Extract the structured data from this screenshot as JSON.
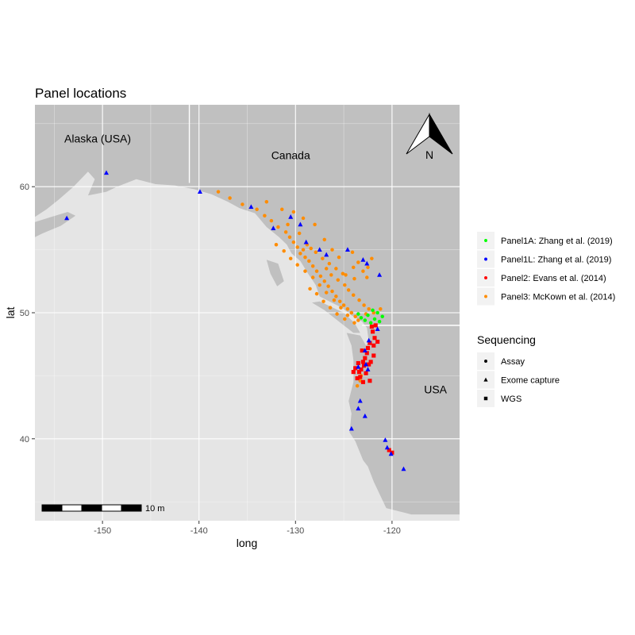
{
  "chart_data": {
    "type": "scatter",
    "title": "Panel locations",
    "xlabel": "long",
    "ylabel": "lat",
    "xlim": [
      -157,
      -113
    ],
    "ylim": [
      33.5,
      66.5
    ],
    "xticks": [
      -150,
      -140,
      -130,
      -120
    ],
    "yticks": [
      40,
      50,
      60
    ],
    "grid": true,
    "background_colors": {
      "land": "#c0c0c0",
      "ocean": "#e5e5e5",
      "gridline": "#ffffff"
    },
    "region_labels": [
      {
        "text": "Alaska (USA)",
        "lon": -150.5,
        "lat": 63.5
      },
      {
        "text": "Canada",
        "lon": -130.5,
        "lat": 62.2
      },
      {
        "text": "USA",
        "lon": -115.5,
        "lat": 43.6
      }
    ],
    "north_arrow": {
      "label": "N"
    },
    "scale_bar": {
      "label": "10 m"
    },
    "legend": {
      "placement": "right",
      "color_entries": [
        {
          "name": "Panel1A: Zhang et al. (2019)",
          "color": "#00ff00"
        },
        {
          "name": "Panel1L: Zhang et al. (2019)",
          "color": "#0000ff"
        },
        {
          "name": "Panel2: Evans et al. (2014)",
          "color": "#ff0000"
        },
        {
          "name": "Panel3: McKown et al. (2014)",
          "color": "#ff8c00"
        }
      ],
      "shape_title": "Sequencing",
      "shape_entries": [
        {
          "name": "Assay",
          "shape": "circle"
        },
        {
          "name": "Exome capture",
          "shape": "triangle"
        },
        {
          "name": "WGS",
          "shape": "square"
        }
      ]
    },
    "series": [
      {
        "name": "Panel1A: Zhang et al. (2019)",
        "color": "#00ff00",
        "shape": "circle",
        "points": [
          [
            -123.2,
            49.6
          ],
          [
            -122.5,
            49.8
          ],
          [
            -121.8,
            49.5
          ],
          [
            -122.0,
            50.2
          ],
          [
            -122.8,
            49.4
          ],
          [
            -121.5,
            50.0
          ],
          [
            -121.0,
            49.7
          ],
          [
            -122.2,
            49.2
          ],
          [
            -123.5,
            49.9
          ],
          [
            -121.3,
            49.3
          ]
        ]
      },
      {
        "name": "Panel1L: Zhang et al. (2019)",
        "color": "#0000ff",
        "shape": "triangle",
        "points": [
          [
            -153.7,
            57.5
          ],
          [
            -149.6,
            61.1
          ],
          [
            -139.9,
            59.6
          ],
          [
            -134.6,
            58.4
          ],
          [
            -132.3,
            56.7
          ],
          [
            -130.5,
            57.6
          ],
          [
            -129.5,
            57.0
          ],
          [
            -128.9,
            55.6
          ],
          [
            -127.5,
            55.0
          ],
          [
            -126.8,
            54.6
          ],
          [
            -124.6,
            55.0
          ],
          [
            -123.0,
            54.2
          ],
          [
            -122.6,
            53.9
          ],
          [
            -121.3,
            53.0
          ],
          [
            -121.5,
            48.7
          ],
          [
            -122.4,
            47.8
          ],
          [
            -122.8,
            47.0
          ],
          [
            -123.5,
            45.7
          ],
          [
            -122.5,
            45.5
          ],
          [
            -123.3,
            43.0
          ],
          [
            -123.5,
            42.4
          ],
          [
            -122.8,
            41.8
          ],
          [
            -124.2,
            40.8
          ],
          [
            -120.7,
            39.9
          ],
          [
            -120.5,
            39.3
          ],
          [
            -120.1,
            38.8
          ],
          [
            -118.8,
            37.6
          ],
          [
            -122.7,
            45.9
          ]
        ]
      },
      {
        "name": "Panel2: Evans et al. (2014)",
        "color": "#ff0000",
        "shape": "square",
        "points": [
          [
            -122.0,
            48.5
          ],
          [
            -121.8,
            48.0
          ],
          [
            -122.3,
            47.6
          ],
          [
            -122.5,
            47.2
          ],
          [
            -122.6,
            46.8
          ],
          [
            -122.8,
            46.4
          ],
          [
            -123.0,
            46.1
          ],
          [
            -122.9,
            45.8
          ],
          [
            -123.2,
            45.5
          ],
          [
            -122.7,
            45.2
          ],
          [
            -123.5,
            46.0
          ],
          [
            -123.8,
            45.6
          ],
          [
            -123.3,
            44.9
          ],
          [
            -123.0,
            44.5
          ],
          [
            -122.2,
            46.1
          ],
          [
            -121.9,
            47.4
          ],
          [
            -122.1,
            48.9
          ],
          [
            -121.7,
            49.0
          ],
          [
            -121.5,
            47.7
          ],
          [
            -121.9,
            46.6
          ],
          [
            -122.4,
            45.9
          ],
          [
            -123.6,
            44.8
          ],
          [
            -124.0,
            45.3
          ],
          [
            -123.1,
            47.0
          ],
          [
            -120.3,
            39.1
          ],
          [
            -120.0,
            38.9
          ],
          [
            -123.4,
            45.3
          ],
          [
            -122.3,
            44.6
          ]
        ]
      },
      {
        "name": "Panel3: McKown et al. (2014)",
        "color": "#ff8c00",
        "shape": "circle",
        "points": [
          [
            -138.0,
            59.6
          ],
          [
            -136.8,
            59.1
          ],
          [
            -135.5,
            58.6
          ],
          [
            -134.0,
            58.2
          ],
          [
            -133.2,
            57.7
          ],
          [
            -132.5,
            57.3
          ],
          [
            -131.8,
            56.8
          ],
          [
            -131.0,
            56.4
          ],
          [
            -130.6,
            56.0
          ],
          [
            -130.2,
            55.6
          ],
          [
            -129.8,
            55.2
          ],
          [
            -129.5,
            54.7
          ],
          [
            -129.0,
            54.4
          ],
          [
            -128.6,
            54.1
          ],
          [
            -128.2,
            53.7
          ],
          [
            -127.8,
            53.3
          ],
          [
            -127.4,
            52.9
          ],
          [
            -127.0,
            52.5
          ],
          [
            -126.6,
            52.1
          ],
          [
            -126.2,
            51.7
          ],
          [
            -125.8,
            51.3
          ],
          [
            -125.4,
            50.9
          ],
          [
            -125.0,
            50.6
          ],
          [
            -124.6,
            50.3
          ],
          [
            -124.2,
            50.0
          ],
          [
            -123.8,
            49.7
          ],
          [
            -123.5,
            49.4
          ],
          [
            -129.2,
            55.0
          ],
          [
            -128.8,
            55.4
          ],
          [
            -128.4,
            55.1
          ],
          [
            -127.9,
            54.8
          ],
          [
            -127.2,
            54.3
          ],
          [
            -126.8,
            53.5
          ],
          [
            -126.3,
            53.0
          ],
          [
            -125.6,
            52.6
          ],
          [
            -124.9,
            52.2
          ],
          [
            -124.5,
            51.8
          ],
          [
            -124.0,
            51.4
          ],
          [
            -123.4,
            51.0
          ],
          [
            -122.9,
            50.6
          ],
          [
            -122.4,
            50.3
          ],
          [
            -121.9,
            50.0
          ],
          [
            -133.0,
            58.8
          ],
          [
            -131.4,
            58.2
          ],
          [
            -130.2,
            58.0
          ],
          [
            -129.2,
            57.5
          ],
          [
            -130.8,
            57.0
          ],
          [
            -129.6,
            56.3
          ],
          [
            -132.0,
            55.4
          ],
          [
            -131.2,
            54.9
          ],
          [
            -130.5,
            54.3
          ],
          [
            -129.8,
            53.8
          ],
          [
            -129.0,
            53.3
          ],
          [
            -128.2,
            52.8
          ],
          [
            -127.5,
            52.2
          ],
          [
            -126.8,
            51.6
          ],
          [
            -126.0,
            51.0
          ],
          [
            -125.3,
            50.4
          ],
          [
            -124.6,
            49.8
          ],
          [
            -123.9,
            49.2
          ],
          [
            -123.0,
            53.3
          ],
          [
            -122.6,
            52.8
          ],
          [
            -122.1,
            54.3
          ],
          [
            -123.5,
            54.0
          ],
          [
            -124.0,
            53.6
          ],
          [
            -124.8,
            53.0
          ],
          [
            -123.9,
            52.7
          ],
          [
            -122.5,
            53.6
          ],
          [
            -128.0,
            57.0
          ],
          [
            -127.0,
            55.8
          ],
          [
            -126.2,
            55.0
          ],
          [
            -125.5,
            54.4
          ],
          [
            -124.1,
            54.8
          ],
          [
            -121.2,
            50.3
          ],
          [
            -122.7,
            49.9
          ],
          [
            -123.2,
            45.0
          ],
          [
            -123.6,
            44.2
          ],
          [
            -123.3,
            44.6
          ],
          [
            -122.9,
            45.8
          ],
          [
            -128.5,
            51.9
          ],
          [
            -127.8,
            51.5
          ],
          [
            -127.1,
            50.9
          ],
          [
            -126.4,
            50.4
          ],
          [
            -125.7,
            49.9
          ],
          [
            -124.9,
            49.5
          ],
          [
            -126.5,
            53.9
          ],
          [
            -125.8,
            53.5
          ],
          [
            -125.1,
            53.1
          ]
        ]
      }
    ]
  }
}
